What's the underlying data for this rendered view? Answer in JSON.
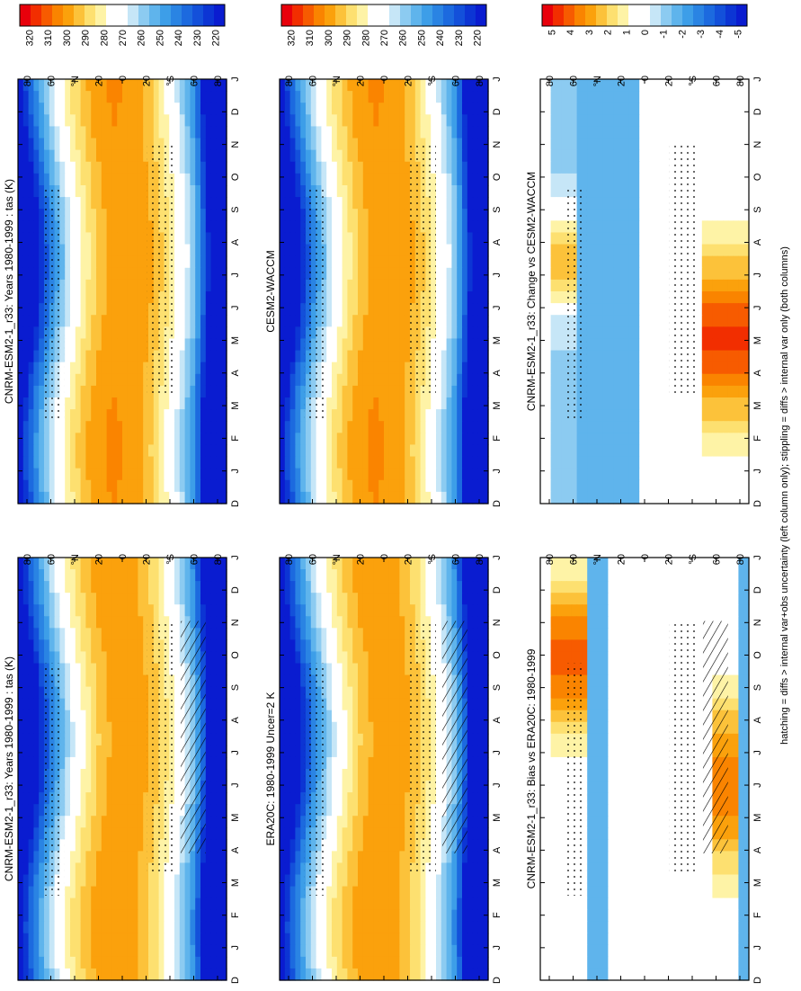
{
  "footer": "hatching = diffs > internal var+obs uncertainty (left column only); stippling = diffs > internal var only (both columns)",
  "months": [
    "D",
    "J",
    "F",
    "M",
    "A",
    "M",
    "J",
    "J",
    "A",
    "S",
    "O",
    "N",
    "D",
    "J"
  ],
  "lat_labels": [
    "80",
    "60",
    "°N",
    "20",
    "0",
    "20",
    "°S",
    "60",
    "80"
  ],
  "abs_scale": {
    "labels": [
      "320",
      "310",
      "300",
      "290",
      "280",
      "270",
      "260",
      "250",
      "240",
      "230",
      "220"
    ],
    "colors": [
      "#e8000b",
      "#f22e00",
      "#f75b00",
      "#fa8400",
      "#fba10c",
      "#fcc23a",
      "#fde070",
      "#fef3a6",
      "#ffffff",
      "#ffffff",
      "#c6e6f7",
      "#8ccbf1",
      "#5fb4ec",
      "#3d9ee8",
      "#2a84e3",
      "#1c6adf",
      "#1350da",
      "#0c35d4",
      "#0a1cd0"
    ]
  },
  "diff_scale": {
    "labels": [
      "5",
      "4",
      "3",
      "2",
      "1",
      "0",
      "-1",
      "-2",
      "-3",
      "-4",
      "-5"
    ],
    "colors": [
      "#e8000b",
      "#f22e00",
      "#f75b00",
      "#fa8400",
      "#fba10c",
      "#fcc23a",
      "#fde070",
      "#fef3a6",
      "#ffffff",
      "#ffffff",
      "#c6e6f7",
      "#8ccbf1",
      "#5fb4ec",
      "#3d9ee8",
      "#2a84e3",
      "#1c6adf",
      "#1350da",
      "#0c35d4",
      "#0a1cd0"
    ]
  },
  "panels": [
    {
      "title": "CNRM-ESM2-1_r33: Years 1980-1999 : tas (K)",
      "kind": "abs"
    },
    {
      "title": "CNRM-ESM2-1_r33: Years 1980-1999 : tas (K)",
      "kind": "abs"
    },
    {
      "title": "ERA20C: 1980-1999 Uncer=2 K",
      "kind": "abs"
    },
    {
      "title": "CESM2-WACCM",
      "kind": "abs"
    },
    {
      "title": "CNRM-ESM2-1_r33: Bias vs ERA20C: 1980-1999",
      "kind": "diff"
    },
    {
      "title": "CNRM-ESM2-1_r33: Change vs CESM2-WACCM",
      "kind": "diff"
    }
  ],
  "chart_data": [
    {
      "type": "heatmap",
      "title": "CNRM-ESM2-1_r33: Years 1980-1999 : tas (K)",
      "variable": "tas (K)",
      "x": [
        "D",
        "J",
        "F",
        "M",
        "A",
        "M",
        "J",
        "J",
        "A",
        "S",
        "O",
        "N",
        "D",
        "J"
      ],
      "y": [
        "80",
        "60",
        "°N",
        "20",
        "0",
        "20",
        "°S",
        "60",
        "80"
      ],
      "colorbar": [
        320,
        310,
        300,
        290,
        280,
        270,
        260,
        250,
        240,
        230,
        220
      ]
    },
    {
      "type": "heatmap",
      "title": "CNRM-ESM2-1_r33: Years 1980-1999 : tas (K)",
      "variable": "tas (K)",
      "x": [
        "D",
        "J",
        "F",
        "M",
        "A",
        "M",
        "J",
        "J",
        "A",
        "S",
        "O",
        "N",
        "D",
        "J"
      ],
      "y": [
        "80",
        "60",
        "°N",
        "20",
        "0",
        "20",
        "°S",
        "60",
        "80"
      ],
      "colorbar": [
        320,
        310,
        300,
        290,
        280,
        270,
        260,
        250,
        240,
        230,
        220
      ]
    },
    {
      "type": "heatmap",
      "title": "ERA20C: 1980-1999 Uncer=2 K",
      "x": [
        "D",
        "J",
        "F",
        "M",
        "A",
        "M",
        "J",
        "J",
        "A",
        "S",
        "O",
        "N",
        "D",
        "J"
      ],
      "y": [
        "80",
        "60",
        "°N",
        "20",
        "0",
        "20",
        "°S",
        "60",
        "80"
      ],
      "colorbar": [
        320,
        310,
        300,
        290,
        280,
        270,
        260,
        250,
        240,
        230,
        220
      ]
    },
    {
      "type": "heatmap",
      "title": "CESM2-WACCM",
      "x": [
        "D",
        "J",
        "F",
        "M",
        "A",
        "M",
        "J",
        "J",
        "A",
        "S",
        "O",
        "N",
        "D",
        "J"
      ],
      "y": [
        "80",
        "60",
        "°N",
        "20",
        "0",
        "20",
        "°S",
        "60",
        "80"
      ],
      "colorbar": [
        320,
        310,
        300,
        290,
        280,
        270,
        260,
        250,
        240,
        230,
        220
      ]
    },
    {
      "type": "heatmap",
      "title": "CNRM-ESM2-1_r33: Bias vs ERA20C: 1980-1999",
      "x": [
        "D",
        "J",
        "F",
        "M",
        "A",
        "M",
        "J",
        "J",
        "A",
        "S",
        "O",
        "N",
        "D",
        "J"
      ],
      "y": [
        "80",
        "60",
        "°N",
        "20",
        "0",
        "20",
        "°S",
        "60",
        "80"
      ],
      "colorbar": [
        5,
        4,
        3,
        2,
        1,
        0,
        -1,
        -2,
        -3,
        -4,
        -5
      ]
    },
    {
      "type": "heatmap",
      "title": "CNRM-ESM2-1_r33: Change vs CESM2-WACCM",
      "x": [
        "D",
        "J",
        "F",
        "M",
        "A",
        "M",
        "J",
        "J",
        "A",
        "S",
        "O",
        "N",
        "D",
        "J"
      ],
      "y": [
        "80",
        "60",
        "°N",
        "20",
        "0",
        "20",
        "°S",
        "60",
        "80"
      ],
      "colorbar": [
        5,
        4,
        3,
        2,
        1,
        0,
        -1,
        -2,
        -3,
        -4,
        -5
      ]
    }
  ]
}
